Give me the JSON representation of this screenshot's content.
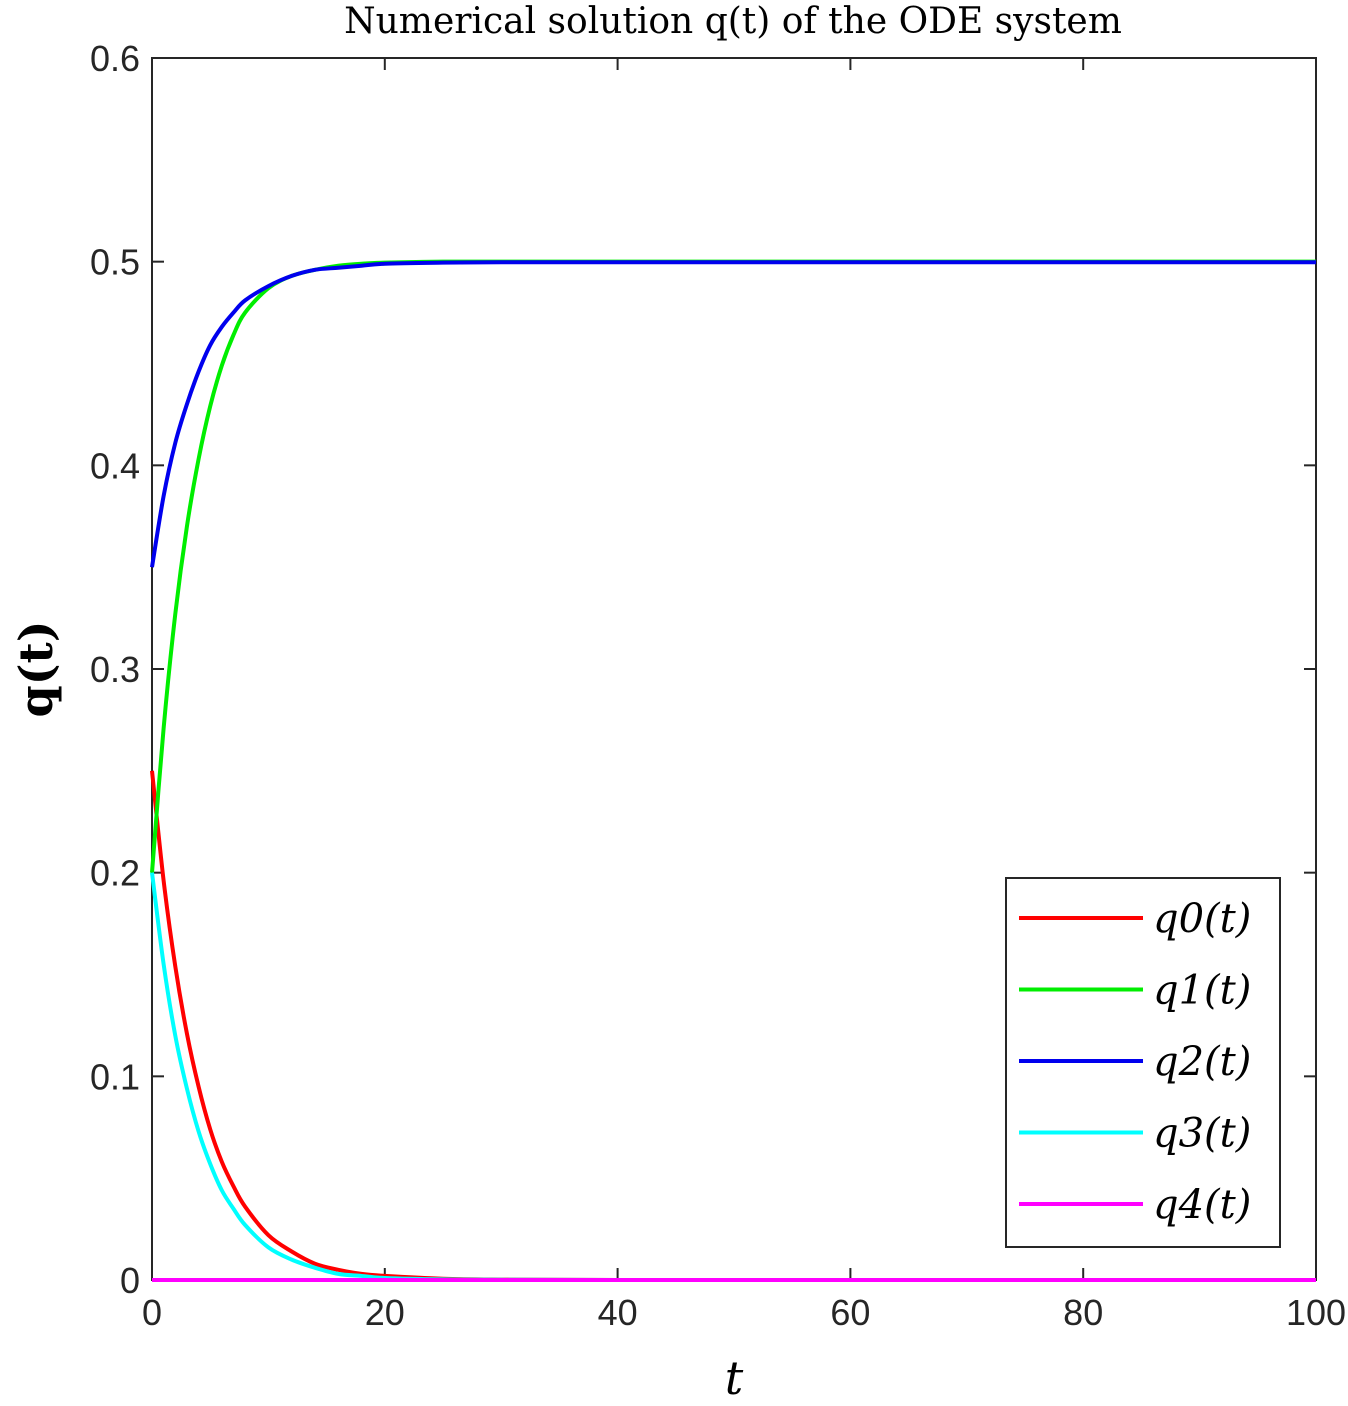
{
  "chart_data": {
    "type": "line",
    "title": "Numerical solution q(t) of the ODE system",
    "xlabel": "t",
    "ylabel": "q(t)",
    "xlim": [
      0,
      100
    ],
    "ylim": [
      0,
      0.6
    ],
    "xticks": [
      "0",
      "20",
      "40",
      "60",
      "80",
      "100"
    ],
    "yticks": [
      "0",
      "0.1",
      "0.2",
      "0.3",
      "0.4",
      "0.5",
      "0.6"
    ],
    "grid": false,
    "legend_position": "bottom-right",
    "x": [
      0,
      1,
      2,
      3,
      4,
      5,
      6,
      7,
      8,
      10,
      12,
      14,
      16,
      18,
      20,
      25,
      30,
      40,
      60,
      80,
      100
    ],
    "series": [
      {
        "name": "q0(t)",
        "color": "#ff0000",
        "values": [
          0.25,
          0.196,
          0.154,
          0.121,
          0.095,
          0.074,
          0.058,
          0.046,
          0.036,
          0.022,
          0.014,
          0.008,
          0.005,
          0.003,
          0.002,
          0.0006,
          0.0002,
          0.0,
          0.0,
          0.0,
          0.0
        ]
      },
      {
        "name": "q1(t)",
        "color": "#00ee00",
        "values": [
          0.2,
          0.271,
          0.327,
          0.37,
          0.403,
          0.429,
          0.449,
          0.464,
          0.475,
          0.487,
          0.493,
          0.496,
          0.498,
          0.499,
          0.4995,
          0.5,
          0.5,
          0.5,
          0.5,
          0.5,
          0.5
        ]
      },
      {
        "name": "q2(t)",
        "color": "#0000ee",
        "values": [
          0.35,
          0.385,
          0.411,
          0.43,
          0.446,
          0.459,
          0.468,
          0.475,
          0.481,
          0.488,
          0.493,
          0.496,
          0.497,
          0.498,
          0.499,
          0.4995,
          0.4997,
          0.4997,
          0.4997,
          0.4997,
          0.4997
        ]
      },
      {
        "name": "q3(t)",
        "color": "#00ffff",
        "values": [
          0.2,
          0.155,
          0.12,
          0.094,
          0.073,
          0.057,
          0.044,
          0.035,
          0.027,
          0.016,
          0.01,
          0.006,
          0.003,
          0.002,
          0.001,
          0.0003,
          0.0001,
          0.0,
          0.0,
          0.0,
          0.0
        ]
      },
      {
        "name": "q4(t)",
        "color": "#ff00ff",
        "values": [
          0.0,
          0.0,
          0.0,
          0.0,
          0.0,
          0.0,
          0.0,
          0.0,
          0.0,
          0.0,
          0.0,
          0.0,
          0.0,
          0.0,
          0.0,
          0.0,
          0.0,
          0.0,
          0.0,
          0.0,
          0.0
        ]
      }
    ]
  }
}
